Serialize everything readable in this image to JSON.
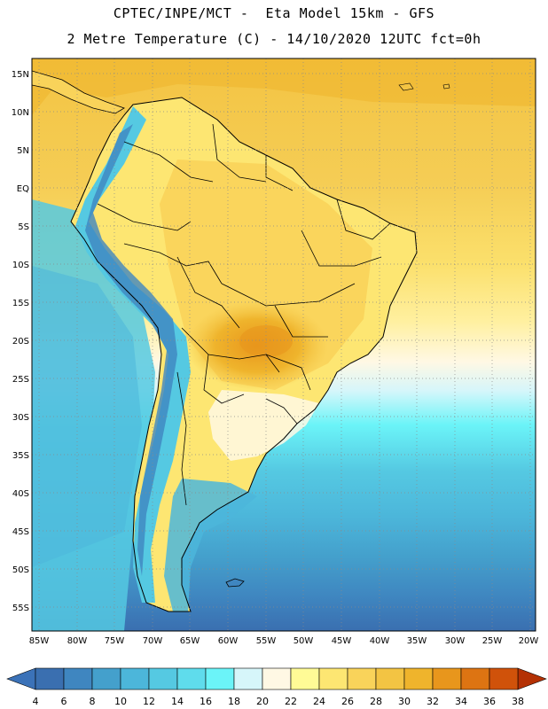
{
  "header": {
    "line1": "CPTEC/INPE/MCT -  Eta Model 15km - GFS",
    "line2": "2 Metre Temperature (C) - 14/10/2020 12UTC fct=0h"
  },
  "map": {
    "lat_labels": [
      "15N",
      "10N",
      "5N",
      "EQ",
      "5S",
      "10S",
      "15S",
      "20S",
      "25S",
      "30S",
      "35S",
      "40S",
      "45S",
      "50S",
      "55S"
    ],
    "lon_labels": [
      "85W",
      "80W",
      "75W",
      "70W",
      "65W",
      "60W",
      "55W",
      "50W",
      "45W",
      "40W",
      "35W",
      "30W",
      "25W",
      "20W"
    ]
  },
  "colorbar": {
    "labels": [
      "4",
      "6",
      "8",
      "10",
      "12",
      "14",
      "16",
      "18",
      "20",
      "22",
      "24",
      "26",
      "28",
      "30",
      "32",
      "34",
      "36",
      "38"
    ],
    "colors": [
      "#3a6fb0",
      "#3f86c0",
      "#44a0cc",
      "#4cb6da",
      "#55c9e2",
      "#5fdcec",
      "#6bf4f8",
      "#d6f6fa",
      "#fff8e4",
      "#fffb96",
      "#fde672",
      "#f9d35a",
      "#f3c443",
      "#efb42c",
      "#e8961c",
      "#dd7412",
      "#d0520a",
      "#c23a06"
    ],
    "low_color": "#3b72b8",
    "high_color": "#b43104"
  }
}
